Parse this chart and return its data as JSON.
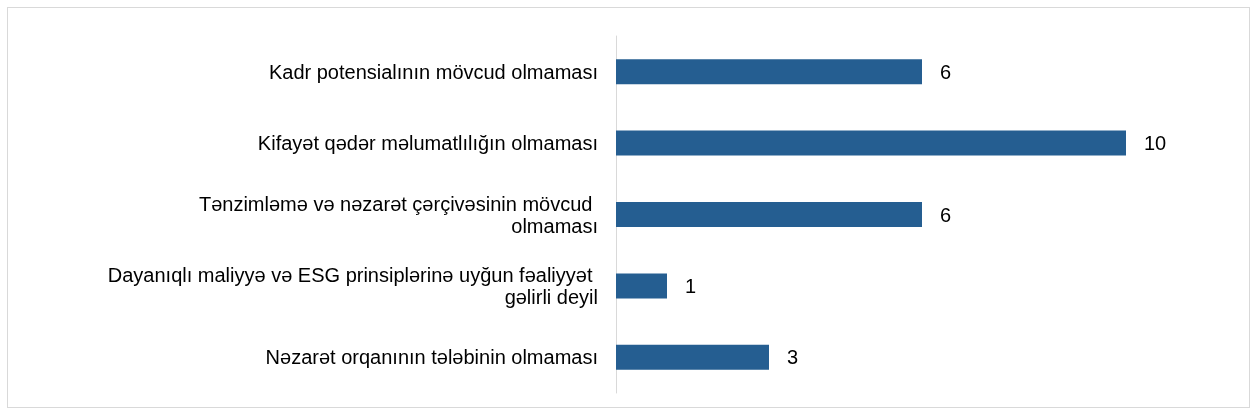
{
  "chart_data": {
    "type": "bar",
    "orientation": "horizontal",
    "categories": [
      "Kadr potensialının mövcud olmaması",
      "Kifayət qədər məlumatlılığın olmaması",
      "Tənzimləmə və nəzarət çərçivəsinin mövcud olmaması",
      "Dayanıqlı maliyyə və ESG prinsiplərinə uyğun fəaliyyət gəlirli deyil",
      "Nəzarət orqanının tələbinin olmaması"
    ],
    "values": [
      6,
      10,
      6,
      1,
      3
    ],
    "color": "#255e91",
    "data_labels": true
  }
}
